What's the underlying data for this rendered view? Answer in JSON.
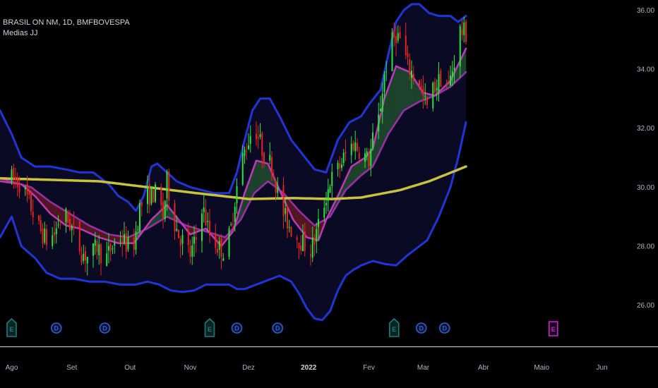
{
  "header": {
    "symbol": "BRASIL ON NM, 1D, BMFBOVESPA",
    "indicator": "Medias JJ"
  },
  "colors": {
    "background": "#000000",
    "candle_up": "#26e83a",
    "candle_down": "#e8231f",
    "bollinger": "#1f35d6",
    "bollinger_fill": "#0a0a24",
    "sma_slow": "#c9c23c",
    "ema_fast": "#c238b8",
    "ema_mid": "#9b2fa7",
    "fill_bull": "#1f4a2e",
    "fill_bear": "#5a1a22",
    "dividend": "#2f5fd6",
    "earnings": "#1f7a7a",
    "earnings_future": "#cc22cc",
    "axis_line": "#c0c0c0"
  },
  "chart_data": {
    "type": "candlestick",
    "title": "BRASIL ON NM, 1D, BMFBOVESPA",
    "ylim": [
      25.3,
      36.15
    ],
    "y_ticks": [
      "26.00",
      "28.00",
      "30.00",
      "32.00",
      "34.00",
      "36.00"
    ],
    "x_ticks": [
      "Ago",
      "Set",
      "Out",
      "Nov",
      "Dez",
      "2022",
      "Fev",
      "Mar",
      "Abr",
      "Maio",
      "Jun"
    ],
    "x_tick_days": [
      0,
      31,
      61,
      92,
      122,
      153,
      184,
      212,
      243,
      273,
      304
    ],
    "x_day_range": [
      -6,
      314
    ],
    "last_day": 234,
    "series": [
      {
        "name": "price",
        "kind": "candles",
        "anchors": [
          [
            0,
            30.3
          ],
          [
            5,
            30.1
          ],
          [
            10,
            29.3
          ],
          [
            14,
            28.6
          ],
          [
            18,
            28.2
          ],
          [
            22,
            28.4
          ],
          [
            24,
            28.8
          ],
          [
            28,
            29.0
          ],
          [
            32,
            28.5
          ],
          [
            36,
            27.8
          ],
          [
            40,
            27.6
          ],
          [
            44,
            28.0
          ],
          [
            48,
            27.5
          ],
          [
            52,
            28.0
          ],
          [
            56,
            28.3
          ],
          [
            60,
            28.0
          ],
          [
            63,
            28.1
          ],
          [
            66,
            29.3
          ],
          [
            70,
            29.7
          ],
          [
            75,
            29.8
          ],
          [
            78,
            29.0
          ],
          [
            80,
            30.2
          ],
          [
            83,
            29.0
          ],
          [
            86,
            28.4
          ],
          [
            89,
            28.1
          ],
          [
            92,
            27.7
          ],
          [
            96,
            28.4
          ],
          [
            98,
            29.4
          ],
          [
            102,
            28.4
          ],
          [
            106,
            28.0
          ],
          [
            110,
            27.8
          ],
          [
            113,
            28.6
          ],
          [
            115,
            29.6
          ],
          [
            118,
            30.8
          ],
          [
            121,
            31.4
          ],
          [
            124,
            32.0
          ],
          [
            126,
            31.9
          ],
          [
            128,
            31.5
          ],
          [
            131,
            30.9
          ],
          [
            134,
            30.8
          ],
          [
            137,
            29.8
          ],
          [
            140,
            29.1
          ],
          [
            143,
            28.7
          ],
          [
            146,
            28.4
          ],
          [
            150,
            28.1
          ],
          [
            154,
            27.9
          ],
          [
            156,
            28.2
          ],
          [
            160,
            29.2
          ],
          [
            164,
            30.2
          ],
          [
            168,
            30.6
          ],
          [
            172,
            31.1
          ],
          [
            176,
            31.5
          ],
          [
            180,
            31.2
          ],
          [
            184,
            30.9
          ],
          [
            186,
            31.6
          ],
          [
            189,
            32.3
          ],
          [
            192,
            33.8
          ],
          [
            195,
            34.8
          ],
          [
            198,
            35.2
          ],
          [
            201,
            34.9
          ],
          [
            204,
            34.1
          ],
          [
            207,
            33.8
          ],
          [
            210,
            33.6
          ],
          [
            212,
            33.0
          ],
          [
            214,
            32.7
          ],
          [
            216,
            33.2
          ],
          [
            219,
            33.5
          ],
          [
            222,
            33.8
          ],
          [
            225,
            33.4
          ],
          [
            228,
            34.3
          ],
          [
            231,
            35.3
          ],
          [
            234,
            35.2
          ]
        ]
      },
      {
        "name": "SMA slow",
        "kind": "line",
        "points": [
          [
            -6,
            30.3
          ],
          [
            20,
            30.25
          ],
          [
            45,
            30.2
          ],
          [
            70,
            30.0
          ],
          [
            95,
            29.8
          ],
          [
            122,
            29.6
          ],
          [
            145,
            29.63
          ],
          [
            165,
            29.6
          ],
          [
            180,
            29.65
          ],
          [
            200,
            29.9
          ],
          [
            215,
            30.2
          ],
          [
            234,
            30.7
          ]
        ]
      },
      {
        "name": "EMA fast",
        "kind": "line",
        "points": [
          [
            -6,
            30.2
          ],
          [
            5,
            30.1
          ],
          [
            12,
            29.7
          ],
          [
            20,
            29.1
          ],
          [
            28,
            28.7
          ],
          [
            35,
            28.6
          ],
          [
            45,
            28.3
          ],
          [
            55,
            28.1
          ],
          [
            63,
            28.1
          ],
          [
            72,
            28.9
          ],
          [
            80,
            29.4
          ],
          [
            86,
            28.9
          ],
          [
            92,
            28.4
          ],
          [
            100,
            28.6
          ],
          [
            108,
            28.0
          ],
          [
            114,
            28.5
          ],
          [
            120,
            29.8
          ],
          [
            126,
            30.9
          ],
          [
            132,
            30.8
          ],
          [
            138,
            29.9
          ],
          [
            145,
            28.9
          ],
          [
            152,
            28.3
          ],
          [
            158,
            28.2
          ],
          [
            162,
            28.9
          ],
          [
            168,
            29.7
          ],
          [
            175,
            30.7
          ],
          [
            182,
            31.0
          ],
          [
            186,
            31.3
          ],
          [
            192,
            33.0
          ],
          [
            198,
            34.1
          ],
          [
            205,
            33.9
          ],
          [
            212,
            33.2
          ],
          [
            218,
            33.1
          ],
          [
            226,
            33.6
          ],
          [
            234,
            34.7
          ]
        ]
      },
      {
        "name": "EMA mid",
        "kind": "line",
        "points": [
          [
            -6,
            30.3
          ],
          [
            10,
            30.0
          ],
          [
            20,
            29.5
          ],
          [
            30,
            29.1
          ],
          [
            40,
            28.7
          ],
          [
            50,
            28.4
          ],
          [
            60,
            28.3
          ],
          [
            70,
            28.6
          ],
          [
            80,
            29.0
          ],
          [
            90,
            28.7
          ],
          [
            100,
            28.5
          ],
          [
            110,
            28.3
          ],
          [
            118,
            28.9
          ],
          [
            125,
            29.8
          ],
          [
            132,
            30.2
          ],
          [
            140,
            29.8
          ],
          [
            148,
            29.2
          ],
          [
            156,
            28.7
          ],
          [
            164,
            29.0
          ],
          [
            172,
            29.9
          ],
          [
            180,
            30.4
          ],
          [
            186,
            30.7
          ],
          [
            194,
            31.8
          ],
          [
            202,
            32.6
          ],
          [
            210,
            32.9
          ],
          [
            218,
            33.1
          ],
          [
            226,
            33.4
          ],
          [
            234,
            33.9
          ]
        ]
      },
      {
        "name": "Bollinger upper",
        "kind": "line",
        "points": [
          [
            -6,
            32.6
          ],
          [
            0,
            31.8
          ],
          [
            5,
            31.0
          ],
          [
            12,
            30.7
          ],
          [
            20,
            30.7
          ],
          [
            28,
            30.6
          ],
          [
            35,
            30.5
          ],
          [
            42,
            30.5
          ],
          [
            50,
            30.1
          ],
          [
            55,
            29.7
          ],
          [
            60,
            29.5
          ],
          [
            64,
            29.2
          ],
          [
            68,
            29.7
          ],
          [
            72,
            30.7
          ],
          [
            75,
            30.8
          ],
          [
            80,
            30.5
          ],
          [
            85,
            30.2
          ],
          [
            92,
            30.0
          ],
          [
            98,
            29.9
          ],
          [
            104,
            29.8
          ],
          [
            112,
            29.8
          ],
          [
            116,
            30.5
          ],
          [
            120,
            31.6
          ],
          [
            124,
            32.6
          ],
          [
            128,
            33.0
          ],
          [
            133,
            33.0
          ],
          [
            138,
            32.4
          ],
          [
            144,
            31.6
          ],
          [
            150,
            31.1
          ],
          [
            156,
            30.6
          ],
          [
            162,
            30.5
          ],
          [
            168,
            31.6
          ],
          [
            174,
            32.2
          ],
          [
            180,
            32.4
          ],
          [
            184,
            32.8
          ],
          [
            190,
            33.3
          ],
          [
            194,
            34.5
          ],
          [
            198,
            35.6
          ],
          [
            202,
            36.0
          ],
          [
            206,
            36.2
          ],
          [
            210,
            36.2
          ],
          [
            215,
            35.9
          ],
          [
            220,
            35.8
          ],
          [
            226,
            35.8
          ],
          [
            230,
            35.6
          ],
          [
            234,
            35.8
          ]
        ]
      },
      {
        "name": "Bollinger lower",
        "kind": "line",
        "points": [
          [
            -6,
            28.3
          ],
          [
            0,
            29.0
          ],
          [
            5,
            28.0
          ],
          [
            12,
            27.6
          ],
          [
            18,
            27.1
          ],
          [
            25,
            26.9
          ],
          [
            32,
            26.9
          ],
          [
            40,
            26.8
          ],
          [
            48,
            26.8
          ],
          [
            56,
            26.7
          ],
          [
            64,
            26.7
          ],
          [
            70,
            26.8
          ],
          [
            76,
            26.7
          ],
          [
            82,
            26.5
          ],
          [
            88,
            26.45
          ],
          [
            94,
            26.5
          ],
          [
            100,
            26.7
          ],
          [
            106,
            26.7
          ],
          [
            112,
            26.7
          ],
          [
            116,
            26.55
          ],
          [
            120,
            26.55
          ],
          [
            126,
            26.7
          ],
          [
            132,
            26.85
          ],
          [
            138,
            27.0
          ],
          [
            144,
            26.8
          ],
          [
            148,
            26.4
          ],
          [
            152,
            25.9
          ],
          [
            156,
            25.55
          ],
          [
            160,
            25.5
          ],
          [
            164,
            25.8
          ],
          [
            168,
            26.5
          ],
          [
            172,
            27.0
          ],
          [
            176,
            27.2
          ],
          [
            180,
            27.35
          ],
          [
            186,
            27.5
          ],
          [
            192,
            27.4
          ],
          [
            198,
            27.35
          ],
          [
            204,
            27.7
          ],
          [
            208,
            27.9
          ],
          [
            214,
            28.2
          ],
          [
            220,
            29.0
          ],
          [
            226,
            30.0
          ],
          [
            230,
            31.0
          ],
          [
            234,
            32.2
          ]
        ]
      }
    ],
    "events": [
      {
        "label": "E",
        "kind": "earnings",
        "x": 0
      },
      {
        "label": "D",
        "kind": "dividend",
        "x": 23
      },
      {
        "label": "D",
        "kind": "dividend",
        "x": 48
      },
      {
        "label": "E",
        "kind": "earnings",
        "x": 102
      },
      {
        "label": "D",
        "kind": "dividend",
        "x": 116
      },
      {
        "label": "D",
        "kind": "dividend",
        "x": 137
      },
      {
        "label": "E",
        "kind": "earnings",
        "x": 197
      },
      {
        "label": "D",
        "kind": "dividend",
        "x": 211
      },
      {
        "label": "D",
        "kind": "dividend",
        "x": 223
      },
      {
        "label": "E",
        "kind": "earnings_future",
        "x": 279
      }
    ]
  }
}
